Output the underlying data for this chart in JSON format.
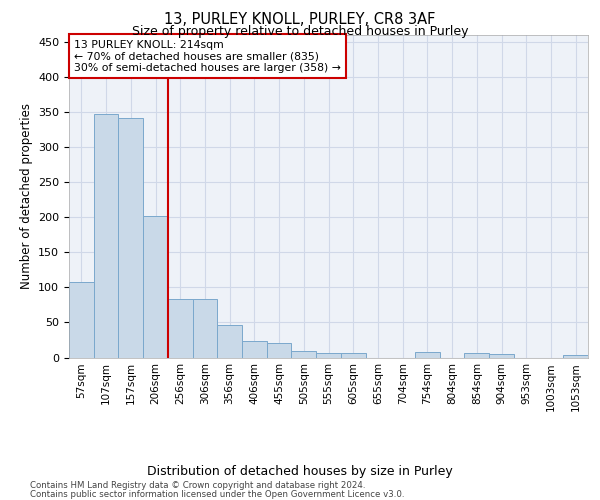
{
  "title1": "13, PURLEY KNOLL, PURLEY, CR8 3AF",
  "title2": "Size of property relative to detached houses in Purley",
  "xlabel": "Distribution of detached houses by size in Purley",
  "ylabel": "Number of detached properties",
  "bar_labels": [
    "57sqm",
    "107sqm",
    "157sqm",
    "206sqm",
    "256sqm",
    "306sqm",
    "356sqm",
    "406sqm",
    "455sqm",
    "505sqm",
    "555sqm",
    "605sqm",
    "655sqm",
    "704sqm",
    "754sqm",
    "804sqm",
    "854sqm",
    "904sqm",
    "953sqm",
    "1003sqm",
    "1053sqm"
  ],
  "bar_values": [
    108,
    348,
    342,
    202,
    84,
    84,
    46,
    23,
    20,
    9,
    6,
    6,
    0,
    0,
    8,
    0,
    7,
    5,
    0,
    0,
    3
  ],
  "bar_color": "#c9d9e8",
  "bar_edgecolor": "#7aa8cc",
  "grid_color": "#d0d8e8",
  "background_color": "#eef2f8",
  "vline_color": "#cc0000",
  "vline_x_index": 3.5,
  "annotation_text": "13 PURLEY KNOLL: 214sqm\n← 70% of detached houses are smaller (835)\n30% of semi-detached houses are larger (358) →",
  "annotation_box_color": "#ffffff",
  "annotation_box_edge": "#cc0000",
  "ylim": [
    0,
    460
  ],
  "yticks": [
    0,
    50,
    100,
    150,
    200,
    250,
    300,
    350,
    400,
    450
  ],
  "footer1": "Contains HM Land Registry data © Crown copyright and database right 2024.",
  "footer2": "Contains public sector information licensed under the Open Government Licence v3.0."
}
